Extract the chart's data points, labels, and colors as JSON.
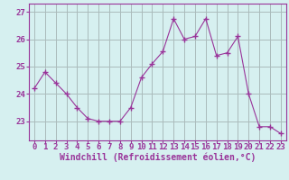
{
  "x": [
    0,
    1,
    2,
    3,
    4,
    5,
    6,
    7,
    8,
    9,
    10,
    11,
    12,
    13,
    14,
    15,
    16,
    17,
    18,
    19,
    20,
    21,
    22,
    23
  ],
  "y": [
    24.2,
    24.8,
    24.4,
    24.0,
    23.5,
    23.1,
    23.0,
    23.0,
    23.0,
    23.5,
    24.6,
    25.1,
    25.55,
    26.75,
    26.0,
    26.1,
    26.75,
    25.4,
    25.5,
    26.1,
    24.0,
    22.8,
    22.8,
    22.55
  ],
  "line_color": "#993399",
  "marker": "+",
  "marker_size": 4,
  "bg_color": "#d6f0f0",
  "grid_color": "#aabbbb",
  "xlabel": "Windchill (Refroidissement éolien,°C)",
  "xlabel_fontsize": 7,
  "xtick_labels": [
    "0",
    "1",
    "2",
    "3",
    "4",
    "5",
    "6",
    "7",
    "8",
    "9",
    "10",
    "11",
    "12",
    "13",
    "14",
    "15",
    "16",
    "17",
    "18",
    "19",
    "20",
    "21",
    "22",
    "23"
  ],
  "ytick_labels": [
    "23",
    "24",
    "25",
    "26",
    "27"
  ],
  "yticks": [
    23,
    24,
    25,
    26,
    27
  ],
  "ylim": [
    22.3,
    27.3
  ],
  "xlim": [
    -0.5,
    23.5
  ],
  "tick_color": "#993399",
  "tick_fontsize": 6.5,
  "axis_color": "#993399"
}
